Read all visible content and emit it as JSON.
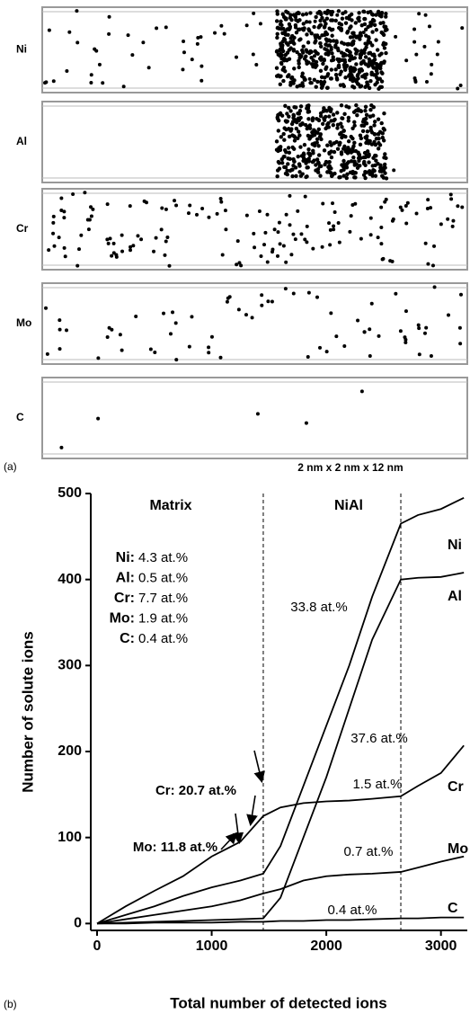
{
  "atom_maps": {
    "panels": [
      {
        "label": "Ni"
      },
      {
        "label": "Al"
      },
      {
        "label": "Cr"
      },
      {
        "label": "Mo"
      },
      {
        "label": "C"
      }
    ],
    "panel_tag": "(a)",
    "scale_label": "2 nm x 2 nm x 12 nm"
  },
  "chart_data": {
    "type": "line",
    "panel_tag": "(b)",
    "x_label": "Total number of detected ions",
    "y_label": "Number of solute ions",
    "x": [
      0,
      250,
      500,
      750,
      1000,
      1250,
      1450,
      1600,
      1800,
      2000,
      2200,
      2400,
      2650,
      2800,
      3000,
      3200
    ],
    "series": [
      {
        "name": "Ni",
        "color": "#000000",
        "values": [
          0,
          10,
          20,
          32,
          42,
          50,
          58,
          90,
          160,
          230,
          300,
          380,
          465,
          475,
          482,
          495
        ]
      },
      {
        "name": "Al",
        "color": "#000000",
        "values": [
          0,
          1,
          2,
          3,
          4,
          5,
          6,
          30,
          100,
          170,
          250,
          330,
          400,
          402,
          403,
          408
        ]
      },
      {
        "name": "Cr",
        "color": "#000000",
        "values": [
          0,
          20,
          38,
          55,
          78,
          95,
          125,
          135,
          140,
          142,
          143,
          145,
          148,
          160,
          175,
          207
        ]
      },
      {
        "name": "Mo",
        "color": "#000000",
        "values": [
          0,
          5,
          10,
          15,
          20,
          27,
          35,
          40,
          50,
          55,
          57,
          58,
          60,
          65,
          72,
          78
        ]
      },
      {
        "name": "C",
        "color": "#000000",
        "values": [
          0,
          0,
          1,
          1,
          1,
          2,
          2,
          3,
          3,
          4,
          4,
          5,
          6,
          6,
          7,
          7
        ]
      }
    ],
    "xlim": [
      -55,
      3230
    ],
    "ylim": [
      -8,
      500
    ],
    "xticks": [
      0,
      1000,
      2000,
      3000
    ],
    "yticks": [
      0,
      100,
      200,
      300,
      400,
      500
    ],
    "region_boundaries": [
      1450,
      2650
    ],
    "region_labels": [
      "Matrix",
      "NiAl"
    ],
    "matrix_composition": [
      {
        "element": "Ni:",
        "value": "4.3 at.%"
      },
      {
        "element": "Al:",
        "value": "0.5 at.%"
      },
      {
        "element": "Cr:",
        "value": "7.7 at.%"
      },
      {
        "element": "Mo:",
        "value": "1.9 at.%"
      },
      {
        "element": "C:",
        "value": "0.4 at.%"
      }
    ],
    "annotations": [
      "33.8 at.%",
      "37.6 at.%",
      "1.5 at.%",
      "0.7 at.%",
      "0.4 at.%",
      "Cr: 20.7 at.%",
      "Mo: 11.8 at.%"
    ]
  }
}
